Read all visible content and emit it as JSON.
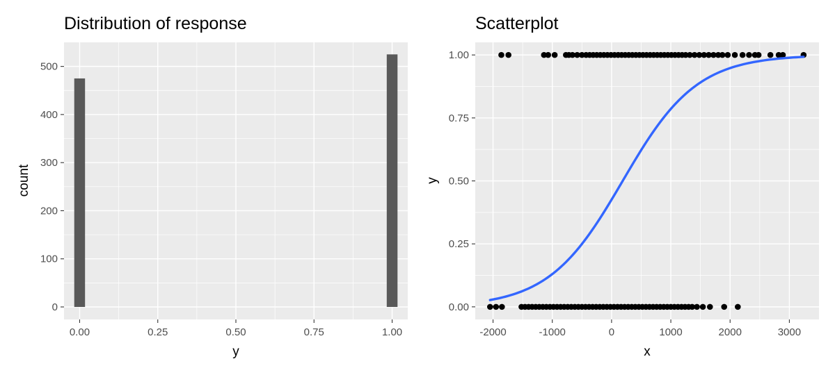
{
  "chart_data": [
    {
      "type": "bar",
      "title": "Distribution of response",
      "xlabel": "y",
      "ylabel": "count",
      "xlim": [
        -0.05,
        1.05
      ],
      "ylim": [
        -26,
        550
      ],
      "x_ticks": [
        0,
        0.25,
        0.5,
        0.75,
        1
      ],
      "x_tick_labels": [
        "0.00",
        "0.25",
        "0.50",
        "0.75",
        "1.00"
      ],
      "y_ticks": [
        0,
        100,
        200,
        300,
        400,
        500
      ],
      "y_tick_labels": [
        "0",
        "100",
        "200",
        "300",
        "400",
        "500"
      ],
      "bar_width": 0.0345,
      "bars": [
        {
          "x": 0,
          "count": 475
        },
        {
          "x": 1,
          "count": 525
        }
      ],
      "colors": {
        "panel": "#ebebeb",
        "grid": "#ffffff",
        "bar": "#595959"
      },
      "grid": true,
      "legend": "none"
    },
    {
      "type": "scatter",
      "title": "Scatterplot",
      "xlabel": "x",
      "ylabel": "y",
      "xlim": [
        -2300,
        3500
      ],
      "ylim": [
        -0.05,
        1.05
      ],
      "x_ticks": [
        -2000,
        -1000,
        0,
        1000,
        2000,
        3000
      ],
      "x_tick_labels": [
        "-2000",
        "-1000",
        "0",
        "1000",
        "2000",
        "3000"
      ],
      "y_ticks": [
        0,
        0.25,
        0.5,
        0.75,
        1
      ],
      "y_tick_labels": [
        "0.00",
        "0.25",
        "0.50",
        "0.75",
        "1.00"
      ],
      "points_y1": [
        -1860,
        -1740,
        -960,
        -1140,
        -1070,
        -770,
        -720,
        -660,
        -580,
        -500,
        -430,
        -370,
        -310,
        -250,
        -190,
        -130,
        -70,
        -10,
        50,
        110,
        170,
        230,
        290,
        350,
        410,
        470,
        530,
        590,
        650,
        710,
        770,
        830,
        890,
        950,
        1010,
        1070,
        1130,
        1190,
        1250,
        1320,
        1400,
        1480,
        1560,
        1640,
        1720,
        1800,
        1870,
        1960,
        2080,
        2210,
        2320,
        2420,
        2480,
        2680,
        2820,
        2890,
        3240
      ],
      "points_y0": [
        -2050,
        -1950,
        -1850,
        -1520,
        -1460,
        -1400,
        -1340,
        -1280,
        -1220,
        -1160,
        -1100,
        -1040,
        -980,
        -920,
        -860,
        -800,
        -740,
        -680,
        -620,
        -560,
        -500,
        -440,
        -380,
        -320,
        -260,
        -200,
        -140,
        -80,
        -20,
        40,
        100,
        160,
        220,
        280,
        340,
        400,
        460,
        520,
        580,
        640,
        700,
        760,
        820,
        880,
        940,
        1000,
        1060,
        1120,
        1180,
        1240,
        1300,
        1360,
        1440,
        1540,
        1660,
        1900,
        2130
      ],
      "fit_curve": {
        "model": "logistic",
        "intercept": -0.3,
        "slope": 0.0016,
        "x_range": [
          -2050,
          3240
        ]
      },
      "colors": {
        "panel": "#ebebeb",
        "grid": "#ffffff",
        "points": "#000000",
        "fit": "#3366ff"
      },
      "grid": true,
      "legend": "none"
    }
  ]
}
